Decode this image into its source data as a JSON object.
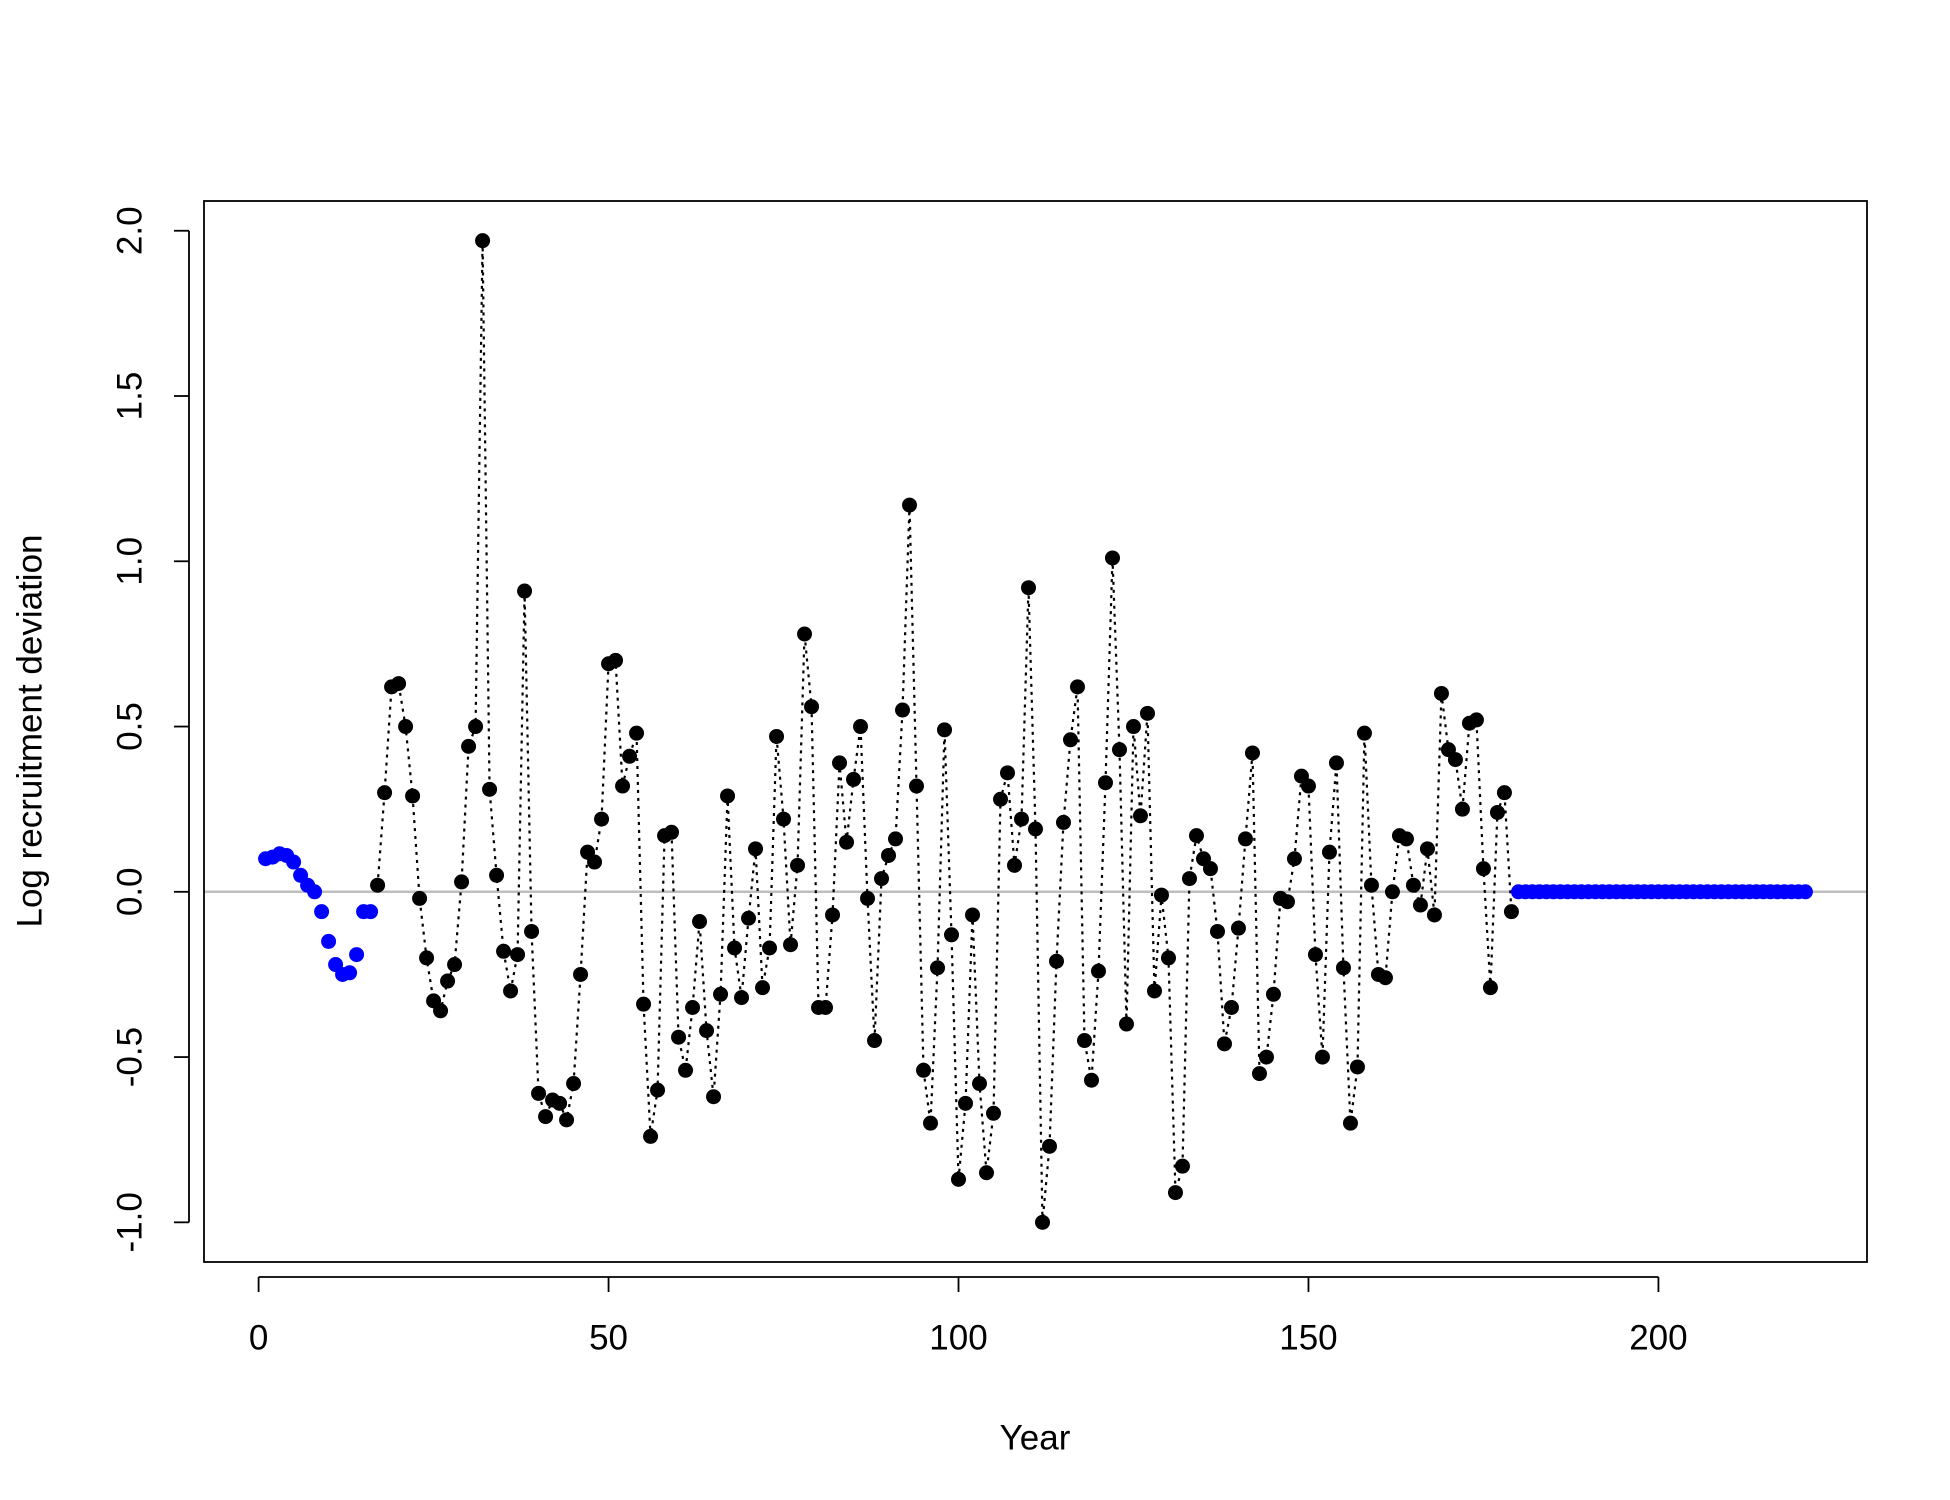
{
  "chart_data": {
    "type": "scatter",
    "x_label": "Year",
    "y_label": "Log recruitment deviation",
    "xlim": [
      -7.8,
      229.8
    ],
    "ylim": [
      -1.12,
      2.09
    ],
    "xticks": [
      0,
      50,
      100,
      150,
      200
    ],
    "yticks": [
      {
        "value": -1.0,
        "label": "-1.0"
      },
      -0.5,
      {
        "value": 0.0,
        "label": "0.0"
      },
      0.5,
      {
        "value": 1.0,
        "label": "1.0"
      },
      1.5,
      {
        "value": 2.0,
        "label": "2.0"
      }
    ],
    "reference_line": {
      "y": 0,
      "color": "#bebebe"
    },
    "series": [
      {
        "color": "#0000ff",
        "linestyle": "none",
        "x": [
          1,
          2,
          3,
          4,
          5,
          6,
          7,
          8,
          9,
          10,
          11,
          12,
          13,
          14,
          15,
          16
        ],
        "values": [
          0.1,
          0.105,
          0.115,
          0.11,
          0.09,
          0.05,
          0.02,
          0.0,
          -0.06,
          -0.15,
          -0.22,
          -0.25,
          -0.245,
          -0.19,
          -0.06,
          -0.06
        ]
      },
      {
        "color": "#000000",
        "linestyle": "dotted",
        "x": [
          17,
          18,
          19,
          20,
          21,
          22,
          23,
          24,
          25,
          26,
          27,
          28,
          29,
          30,
          31,
          32,
          33,
          34,
          35,
          36,
          37,
          38,
          39,
          40,
          41,
          42,
          43,
          44,
          45,
          46,
          47,
          48,
          49,
          50,
          51,
          52,
          53,
          54,
          55,
          56,
          57,
          58,
          59,
          60,
          61,
          62,
          63,
          64,
          65,
          66,
          67,
          68,
          69,
          70,
          71,
          72,
          73,
          74,
          75,
          76,
          77,
          78,
          79,
          80,
          81,
          82,
          83,
          84,
          85,
          86,
          87,
          88,
          89,
          90,
          91,
          92,
          93,
          94,
          95,
          96,
          97,
          98,
          99,
          100,
          101,
          102,
          103,
          104,
          105,
          106,
          107,
          108,
          109,
          110,
          111,
          112,
          113,
          114,
          115,
          116,
          117,
          118,
          119,
          120,
          121,
          122,
          123,
          124,
          125,
          126,
          127,
          128,
          129,
          130,
          131,
          132,
          133,
          134,
          135,
          136,
          137,
          138,
          139,
          140,
          141,
          142,
          143,
          144,
          145,
          146,
          147,
          148,
          149,
          150,
          151,
          152,
          153,
          154,
          155,
          156,
          157,
          158,
          159,
          160,
          161,
          162,
          163,
          164,
          165,
          166,
          167,
          168,
          169,
          170,
          171,
          172,
          173,
          174,
          175,
          176,
          177,
          178,
          179
        ],
        "values": [
          0.02,
          0.3,
          0.62,
          0.63,
          0.5,
          0.29,
          -0.02,
          -0.2,
          -0.33,
          -0.36,
          -0.27,
          -0.22,
          0.03,
          0.44,
          0.5,
          1.97,
          0.31,
          0.05,
          -0.18,
          -0.3,
          -0.19,
          0.91,
          -0.12,
          -0.61,
          -0.68,
          -0.63,
          -0.64,
          -0.69,
          -0.58,
          -0.25,
          0.12,
          0.09,
          0.22,
          0.69,
          0.7,
          0.32,
          0.41,
          0.48,
          -0.34,
          -0.74,
          -0.6,
          0.17,
          0.18,
          -0.44,
          -0.54,
          -0.35,
          -0.09,
          -0.42,
          -0.62,
          -0.31,
          0.29,
          -0.17,
          -0.32,
          -0.08,
          0.13,
          -0.29,
          -0.17,
          0.47,
          0.22,
          -0.16,
          0.08,
          0.78,
          0.56,
          -0.35,
          -0.35,
          -0.07,
          0.39,
          0.15,
          0.34,
          0.5,
          -0.02,
          -0.45,
          0.04,
          0.11,
          0.16,
          0.55,
          1.17,
          0.32,
          -0.54,
          -0.7,
          -0.23,
          0.49,
          -0.13,
          -0.87,
          -0.64,
          -0.07,
          -0.58,
          -0.85,
          -0.67,
          0.28,
          0.36,
          0.08,
          0.22,
          0.92,
          0.19,
          -1.0,
          -0.77,
          -0.21,
          0.21,
          0.46,
          0.62,
          -0.45,
          -0.57,
          -0.24,
          0.33,
          1.01,
          0.43,
          -0.4,
          0.5,
          0.23,
          0.54,
          -0.3,
          -0.01,
          -0.2,
          -0.91,
          -0.83,
          0.04,
          0.17,
          0.1,
          0.07,
          -0.12,
          -0.46,
          -0.35,
          -0.11,
          0.16,
          0.42,
          -0.55,
          -0.5,
          -0.31,
          -0.02,
          -0.03,
          0.1,
          0.35,
          0.32,
          -0.19,
          -0.5,
          0.12,
          0.39,
          -0.23,
          -0.7,
          -0.53,
          0.48,
          0.02,
          -0.25,
          -0.26,
          0.0,
          0.17,
          0.16,
          0.02,
          -0.04,
          0.13,
          -0.07,
          0.6,
          0.43,
          0.4,
          0.25,
          0.51,
          0.52,
          0.07,
          -0.29,
          0.24,
          0.3,
          -0.06
        ]
      },
      {
        "color": "#0000ff",
        "linestyle": "none",
        "x": [
          180,
          181,
          182,
          183,
          184,
          185,
          186,
          187,
          188,
          189,
          190,
          191,
          192,
          193,
          194,
          195,
          196,
          197,
          198,
          199,
          200,
          201,
          202,
          203,
          204,
          205,
          206,
          207,
          208,
          209,
          210,
          211,
          212,
          213,
          214,
          215,
          216,
          217,
          218,
          219,
          220,
          221
        ],
        "values": [
          0,
          0,
          0,
          0,
          0,
          0,
          0,
          0,
          0,
          0,
          0,
          0,
          0,
          0,
          0,
          0,
          0,
          0,
          0,
          0,
          0,
          0,
          0,
          0,
          0,
          0,
          0,
          0,
          0,
          0,
          0,
          0,
          0,
          0,
          0,
          0,
          0,
          0,
          0,
          0,
          0,
          0
        ]
      }
    ]
  }
}
